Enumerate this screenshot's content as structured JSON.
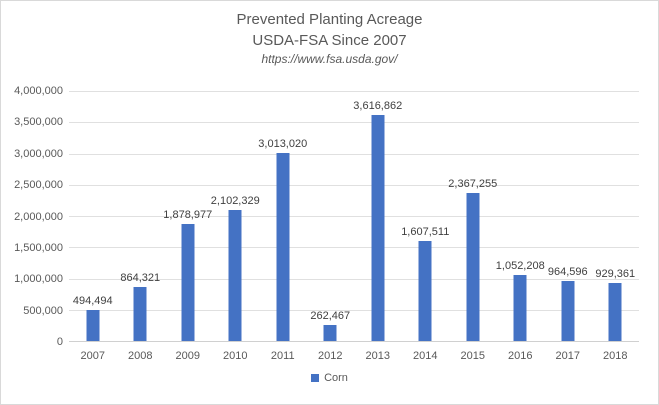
{
  "title": {
    "line1": "Prevented Planting Acreage",
    "line2": "USDA-FSA Since 2007",
    "line3": "https://www.fsa.usda.gov/"
  },
  "legend": {
    "label": "Corn",
    "swatch_color": "#4472C4"
  },
  "chart_data": {
    "type": "bar",
    "title": "Prevented Planting Acreage USDA-FSA Since 2007",
    "subtitle": "https://www.fsa.usda.gov/",
    "categories": [
      "2007",
      "2008",
      "2009",
      "2010",
      "2011",
      "2012",
      "2013",
      "2014",
      "2015",
      "2016",
      "2017",
      "2018"
    ],
    "series": [
      {
        "name": "Corn",
        "values": [
          494494,
          864321,
          1878977,
          2102329,
          3013020,
          262467,
          3616862,
          1607511,
          2367255,
          1052208,
          964596,
          929361
        ],
        "value_labels": [
          "494,494",
          "864,321",
          "1,878,977",
          "2,102,329",
          "3,013,020",
          "262,467",
          "3,616,862",
          "1,607,511",
          "2,367,255",
          "1,052,208",
          "964,596",
          "929,361"
        ],
        "color": "#4472C4"
      }
    ],
    "xlabel": "",
    "ylabel": "",
    "ylim": [
      0,
      4000000
    ],
    "ytick_step": 500000,
    "ytick_labels": [
      "0",
      "500,000",
      "1,000,000",
      "1,500,000",
      "2,000,000",
      "2,500,000",
      "3,000,000",
      "3,500,000",
      "4,000,000"
    ],
    "grid": true,
    "gridline_color": "#E0E0E0",
    "legend_position": "bottom-center"
  }
}
